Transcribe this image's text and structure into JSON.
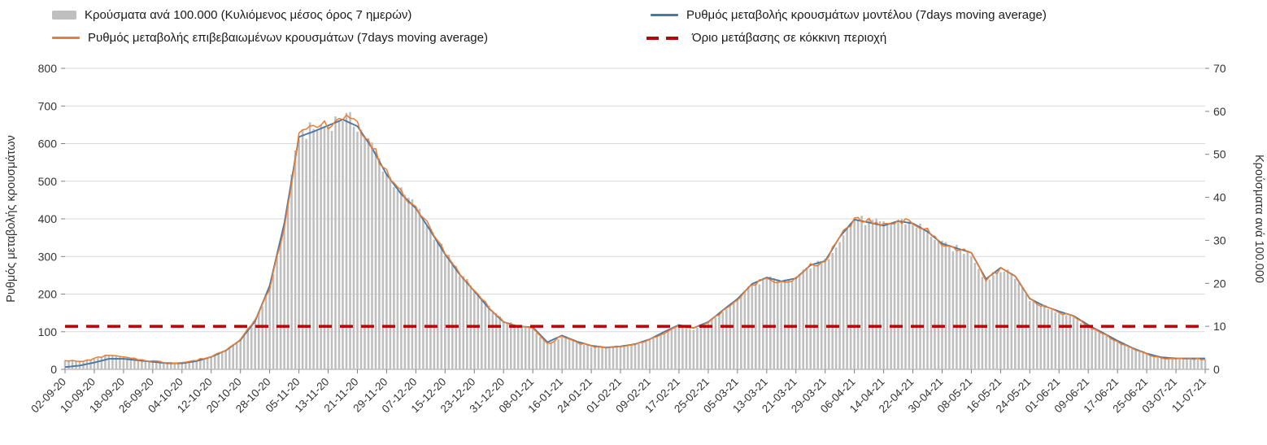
{
  "chart_data": {
    "type": "combo",
    "title": "",
    "legend_position": "top",
    "grid": true,
    "start_date": "02-09-20",
    "sample_step_days": 4,
    "x_tick_every_days": 8,
    "x_tick_labels": [
      "02-09-20",
      "10-09-20",
      "18-09-20",
      "26-09-20",
      "04-10-20",
      "12-10-20",
      "20-10-20",
      "28-10-20",
      "05-11-20",
      "13-11-20",
      "21-11-20",
      "29-11-20",
      "07-12-20",
      "15-12-20",
      "23-12-20",
      "31-12-20",
      "08-01-21",
      "16-01-21",
      "24-01-21",
      "01-02-21",
      "09-02-21",
      "17-02-21",
      "25-02-21",
      "05-03-21",
      "13-03-21",
      "21-03-21",
      "29-03-21",
      "06-04-21",
      "14-04-21",
      "22-04-21",
      "30-04-21",
      "08-05-21",
      "16-05-21",
      "24-05-21",
      "01-06-21",
      "09-06-21",
      "17-06-21",
      "25-06-21",
      "03-07-21",
      "11-07-21"
    ],
    "left_axis": {
      "label": "Ρυθμός μεταβολής κρουσμάτων",
      "min": 0,
      "max": 800,
      "step": 100
    },
    "right_axis": {
      "label": "Κρούσματα ανά 100.000",
      "min": 0,
      "max": 70,
      "step": 10
    },
    "threshold": {
      "name": "Όριο μετάβασης σε κόκκινη περιοχή",
      "axis": "right",
      "value": 10,
      "color": "#c00000"
    },
    "series": [
      {
        "name": "Κρούσματα ανά 100.000 (Κυλιόμενος μέσος όρος 7 ημερών)",
        "type": "bar",
        "axis": "right",
        "color": "#bfbfbf",
        "noisy": true,
        "values": [
          2.2,
          1.8,
          2.4,
          3.3,
          2.8,
          2.3,
          1.9,
          1.6,
          1.6,
          2.1,
          3.0,
          4.5,
          7.0,
          11.4,
          18.8,
          33.2,
          54.7,
          55.8,
          57.0,
          58.8,
          56.9,
          51.8,
          45.7,
          41.1,
          37.8,
          32.5,
          27.1,
          22.4,
          18.4,
          14.4,
          11.2,
          9.9,
          9.6,
          5.9,
          7.7,
          6.3,
          5.4,
          5.0,
          5.2,
          5.8,
          6.8,
          8.6,
          10.1,
          9.4,
          10.8,
          13.6,
          16.2,
          19.7,
          21.2,
          20.3,
          21.0,
          24.1,
          25.0,
          30.6,
          35.0,
          34.3,
          33.6,
          34.6,
          34.1,
          32.2,
          29.0,
          28.0,
          26.9,
          20.6,
          23.4,
          21.5,
          16.3,
          14.5,
          13.3,
          12.2,
          10.1,
          8.3,
          6.5,
          4.8,
          3.5,
          2.6,
          2.4,
          2.4,
          2.4
        ]
      },
      {
        "name": "Ρυθμός μεταβολής κρουσμάτων μοντέλου (7days moving average)",
        "type": "line",
        "axis": "left",
        "color": "#4a77a3",
        "noisy": false,
        "values": [
          6,
          10,
          18,
          28,
          28,
          24,
          20,
          16,
          16,
          22,
          33,
          50,
          78,
          128,
          222,
          388,
          618,
          632,
          648,
          664,
          646,
          588,
          518,
          466,
          428,
          368,
          306,
          252,
          208,
          162,
          126,
          114,
          112,
          72,
          90,
          74,
          63,
          58,
          61,
          67,
          80,
          100,
          118,
          110,
          126,
          157,
          187,
          227,
          244,
          234,
          242,
          277,
          288,
          352,
          398,
          390,
          382,
          394,
          388,
          366,
          334,
          322,
          310,
          240,
          270,
          248,
          188,
          168,
          154,
          142,
          118,
          97,
          76,
          57,
          42,
          32,
          29,
          29,
          29
        ]
      },
      {
        "name": "Ρυθμός μεταβολής επιβεβαιωμένων κρουσμάτων (7days moving average)",
        "type": "line",
        "axis": "left",
        "color": "#ed7d31",
        "noisy": true,
        "values": [
          25,
          20,
          28,
          38,
          32,
          26,
          22,
          18,
          18,
          24,
          34,
          52,
          80,
          130,
          215,
          380,
          625,
          638,
          652,
          672,
          650,
          592,
          522,
          470,
          432,
          372,
          310,
          256,
          210,
          165,
          128,
          113,
          110,
          68,
          88,
          72,
          62,
          57,
          60,
          66,
          78,
          98,
          116,
          108,
          124,
          155,
          185,
          225,
          242,
          232,
          240,
          275,
          286,
          350,
          400,
          392,
          384,
          396,
          390,
          368,
          332,
          320,
          308,
          236,
          268,
          246,
          186,
          166,
          152,
          140,
          116,
          95,
          74,
          55,
          40,
          30,
          27,
          27,
          27
        ]
      }
    ]
  }
}
